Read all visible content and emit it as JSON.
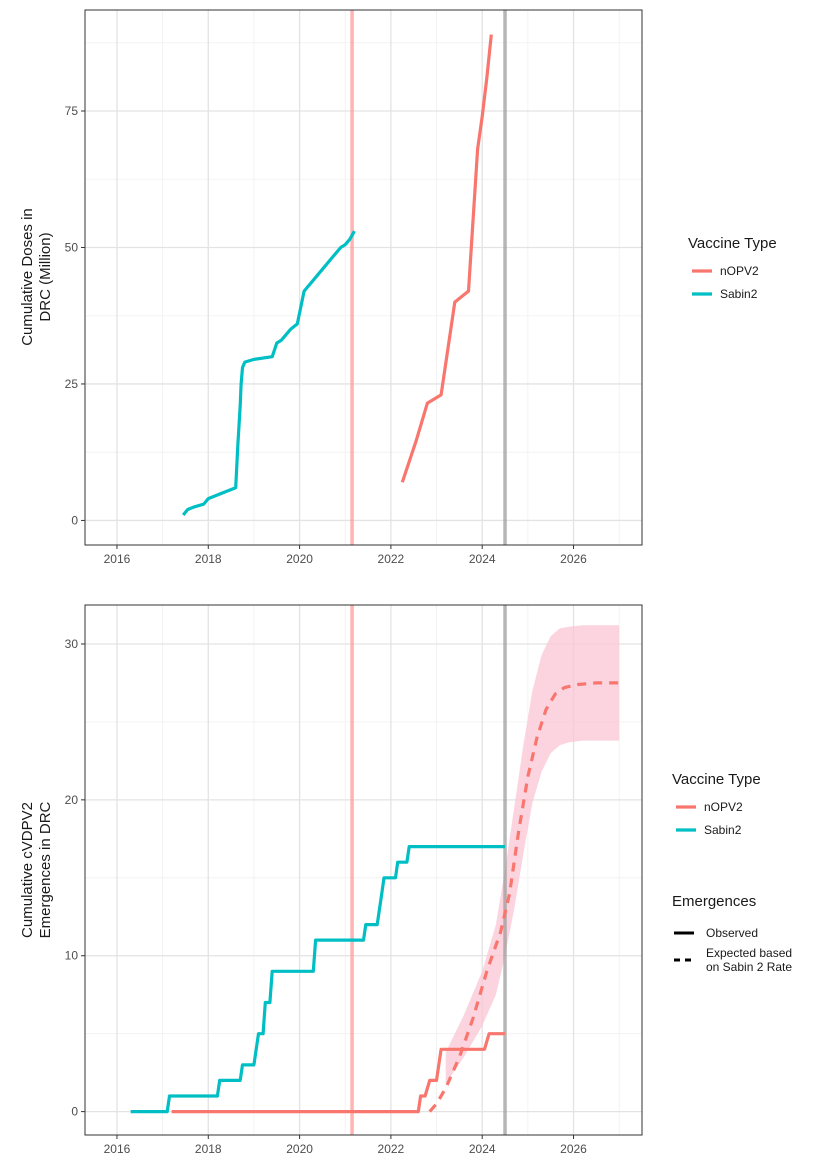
{
  "colors": {
    "nopv2": "#F8766D",
    "sabin2": "#00BFC4",
    "ribbon": "#F9C6D4",
    "vline_red": "#FF9A9A",
    "vline_grey": "#9E9E9E"
  },
  "chart_data": [
    {
      "type": "line",
      "ylabel": "Cumulative Doses in DRC (Million)",
      "ylabel_lines": [
        "Cumulative Doses in",
        "DRC (Million)"
      ],
      "xlim": [
        2015.3,
        2027.5
      ],
      "ylim": [
        -4.5,
        93.5
      ],
      "x_ticks": [
        2016,
        2018,
        2020,
        2022,
        2024,
        2026
      ],
      "x_tick_labels": [
        "2016",
        "2018",
        "2020",
        "2022",
        "2024",
        "2026"
      ],
      "y_ticks": [
        0,
        25,
        50,
        75
      ],
      "y_tick_labels": [
        "0",
        "25",
        "50",
        "75"
      ],
      "grid": true,
      "vlines": [
        {
          "x": 2021.15,
          "color": "vline_red"
        },
        {
          "x": 2024.5,
          "color": "vline_grey"
        }
      ],
      "legend": {
        "title": "Vaccine Type",
        "position": "right",
        "entries": [
          {
            "label": "nOPV2",
            "color": "nopv2"
          },
          {
            "label": "Sabin2",
            "color": "sabin2"
          }
        ]
      },
      "series": [
        {
          "name": "Sabin2",
          "color": "sabin2",
          "linetype": "solid",
          "x": [
            2017.45,
            2017.55,
            2017.7,
            2017.9,
            2018.0,
            2018.3,
            2018.6,
            2018.65,
            2018.7,
            2018.72,
            2018.75,
            2018.8,
            2019.0,
            2019.4,
            2019.5,
            2019.6,
            2019.8,
            2019.95,
            2020.1,
            2020.3,
            2020.5,
            2020.7,
            2020.9,
            2021.0,
            2021.1,
            2021.2
          ],
          "y": [
            1,
            2,
            2.5,
            3,
            4,
            5,
            6,
            14,
            21,
            25,
            28,
            29,
            29.5,
            30,
            32.5,
            33,
            35,
            36,
            42,
            44,
            46,
            48,
            50,
            50.5,
            51.5,
            53
          ]
        },
        {
          "name": "nOPV2",
          "color": "nopv2",
          "linetype": "solid",
          "x": [
            2022.25,
            2022.55,
            2022.8,
            2023.1,
            2023.4,
            2023.7,
            2023.9,
            2024.0,
            2024.1,
            2024.2
          ],
          "y": [
            7,
            14.5,
            21.5,
            23,
            40,
            42,
            68,
            74,
            81,
            89
          ]
        }
      ]
    },
    {
      "type": "line",
      "ylabel": "Cumulative cVDPV2 Emergences in DRC",
      "ylabel_lines": [
        "Cumulative cVDPV2",
        "Emergences in DRC"
      ],
      "xlim": [
        2015.3,
        2027.5
      ],
      "ylim": [
        -1.5,
        32.5
      ],
      "x_ticks": [
        2016,
        2018,
        2020,
        2022,
        2024,
        2026
      ],
      "x_tick_labels": [
        "2016",
        "2018",
        "2020",
        "2022",
        "2024",
        "2026"
      ],
      "y_ticks": [
        0,
        10,
        20,
        30
      ],
      "y_tick_labels": [
        "0",
        "10",
        "20",
        "30"
      ],
      "grid": true,
      "vlines": [
        {
          "x": 2021.15,
          "color": "vline_red"
        },
        {
          "x": 2024.5,
          "color": "vline_grey"
        }
      ],
      "legend": {
        "title": "Vaccine Type",
        "position": "right",
        "entries": [
          {
            "label": "nOPV2",
            "color": "nopv2"
          },
          {
            "label": "Sabin2",
            "color": "sabin2"
          }
        ]
      },
      "legend2": {
        "title": "Emergences",
        "position": "right",
        "entries": [
          {
            "label": "Observed",
            "label_lines": [
              "Observed"
            ],
            "linetype": "solid"
          },
          {
            "label": "Expected based on Sabin 2 Rate",
            "label_lines": [
              "Expected based",
              "on Sabin 2 Rate"
            ],
            "linetype": "dashed"
          }
        ]
      },
      "ribbon": {
        "color": "ribbon",
        "x": [
          2023.2,
          2023.6,
          2024.0,
          2024.3,
          2024.5,
          2024.7,
          2024.9,
          2025.1,
          2025.3,
          2025.5,
          2025.7,
          2025.9,
          2026.2,
          2026.6,
          2027.0
        ],
        "upper": [
          3.8,
          6.2,
          9.0,
          12.0,
          15.5,
          19.5,
          23.5,
          27.0,
          29.3,
          30.5,
          31.0,
          31.1,
          31.2,
          31.2,
          31.2
        ],
        "lower": [
          1.8,
          3.5,
          5.5,
          7.5,
          10.0,
          13.0,
          16.5,
          19.8,
          21.8,
          23.0,
          23.5,
          23.7,
          23.8,
          23.8,
          23.8
        ]
      },
      "series": [
        {
          "name": "Sabin2",
          "color": "sabin2",
          "linetype": "solid",
          "step": true,
          "x": [
            2016.3,
            2017.1,
            2017.15,
            2018.2,
            2018.25,
            2018.7,
            2018.75,
            2019.0,
            2019.05,
            2019.1,
            2019.2,
            2019.25,
            2019.35,
            2019.4,
            2020.3,
            2020.35,
            2021.4,
            2021.45,
            2021.7,
            2021.75,
            2021.8,
            2021.85,
            2022.1,
            2022.15,
            2022.35,
            2022.4,
            2024.5
          ],
          "y": [
            0,
            0,
            1,
            1,
            2,
            2,
            3,
            3,
            4,
            5,
            5,
            7,
            7,
            9,
            9,
            11,
            11,
            12,
            12,
            13,
            14,
            15,
            15,
            16,
            16,
            17,
            17
          ]
        },
        {
          "name": "nOPV2",
          "color": "nopv2",
          "linetype": "solid",
          "step": true,
          "x": [
            2017.2,
            2022.6,
            2022.65,
            2022.75,
            2022.85,
            2023.0,
            2023.1,
            2024.0,
            2024.05,
            2024.15,
            2024.5
          ],
          "y": [
            0,
            0,
            1,
            1,
            2,
            2,
            4,
            4,
            4,
            5,
            5
          ]
        },
        {
          "name": "Expected based on Sabin 2 Rate",
          "color": "nopv2",
          "linetype": "dashed",
          "x": [
            2022.85,
            2023.0,
            2023.2,
            2023.5,
            2023.8,
            2024.1,
            2024.4,
            2024.6,
            2024.8,
            2025.0,
            2025.2,
            2025.4,
            2025.6,
            2025.8,
            2026.1,
            2026.5,
            2027.0
          ],
          "y": [
            0,
            0.5,
            1.5,
            3.5,
            6.0,
            9.0,
            11.5,
            14.0,
            18.0,
            21.5,
            24.0,
            25.8,
            26.8,
            27.2,
            27.4,
            27.5,
            27.5
          ]
        }
      ]
    }
  ]
}
